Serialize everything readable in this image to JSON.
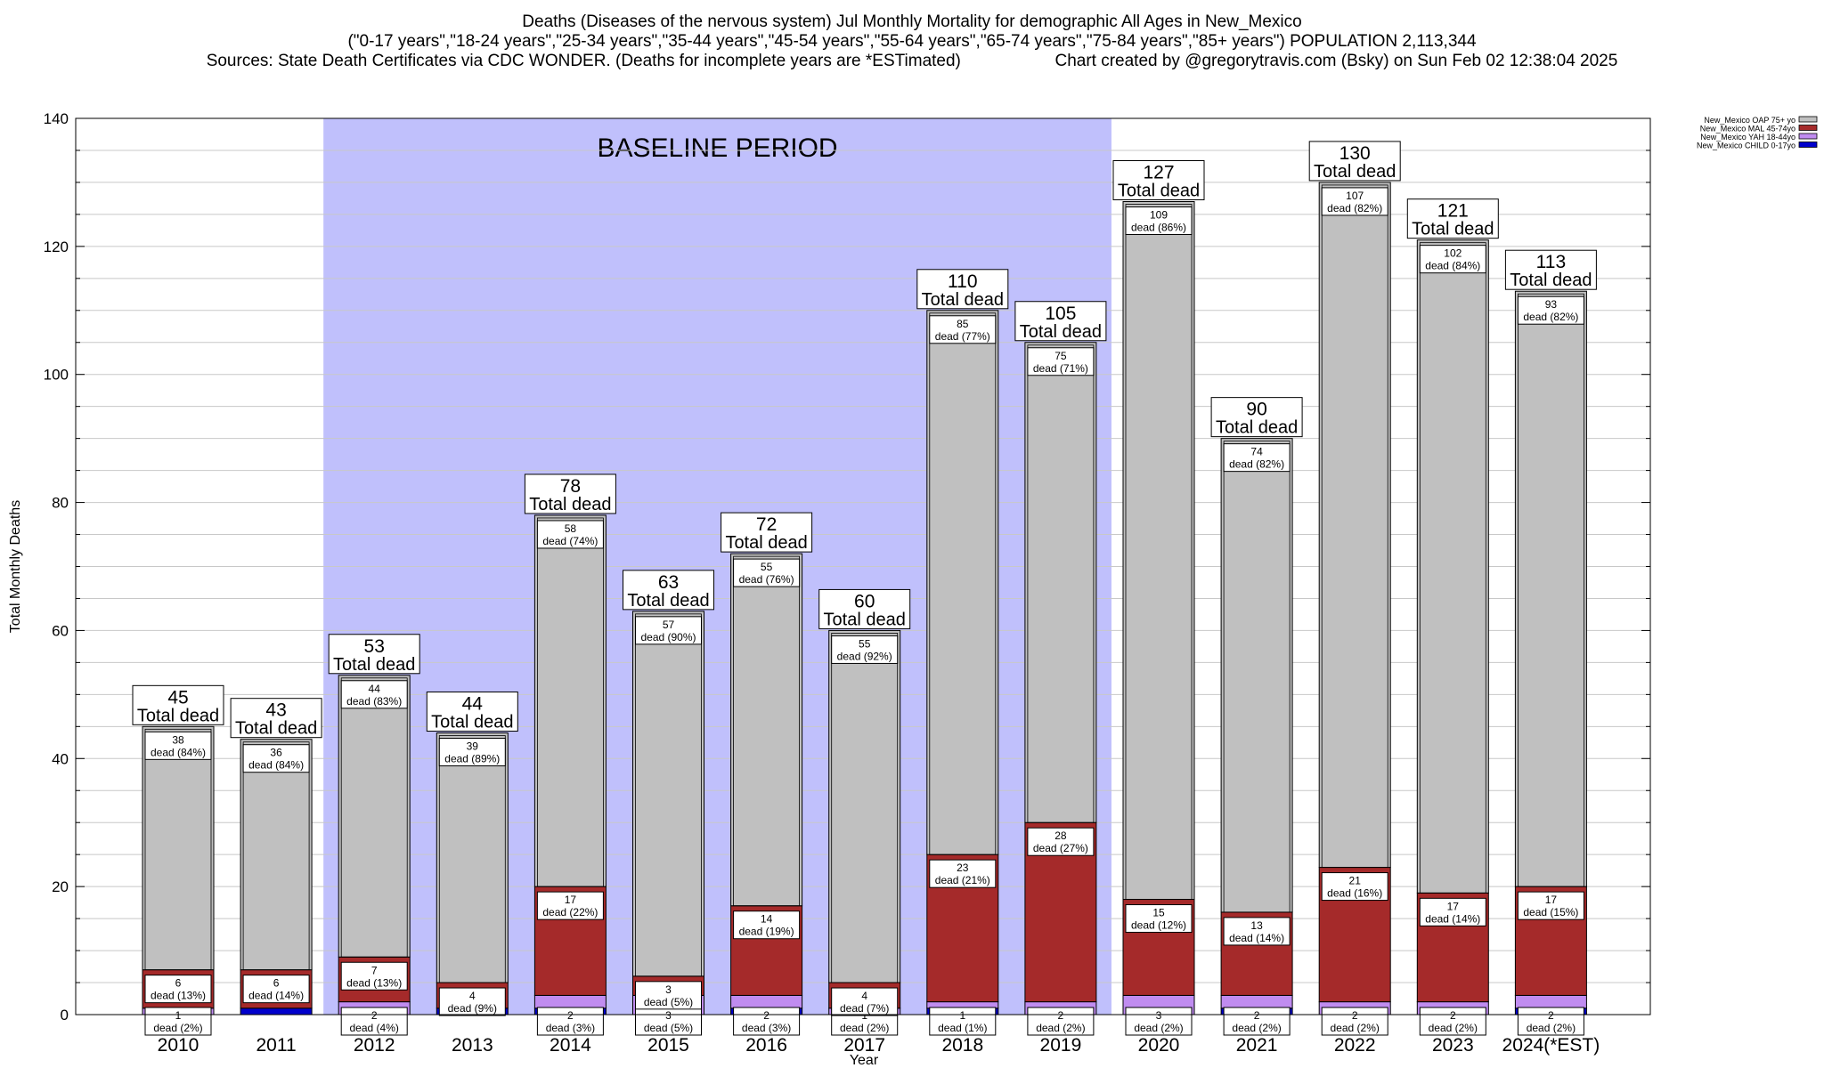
{
  "header": {
    "title": "Deaths (Diseases of the nervous system) Jul Monthly Mortality for demographic All Ages in New_Mexico",
    "subtitle": "(\"0-17 years\",\"18-24 years\",\"25-34 years\",\"35-44 years\",\"45-54 years\",\"55-64 years\",\"65-74 years\",\"75-84 years\",\"85+ years\") POPULATION 2,113,344",
    "sources": "Sources: State Death Certificates via CDC WONDER. (Deaths for incomplete years are *ESTimated)",
    "credit": "Chart created by @gregorytravis.com (Bsky) on Sun Feb 02 12:38:04 2025"
  },
  "chart_data": {
    "type": "bar",
    "stacked": true,
    "xlabel": "Year",
    "ylabel": "Total Monthly Deaths",
    "ylim": [
      0,
      140
    ],
    "yticks": [
      0,
      20,
      40,
      60,
      80,
      100,
      120,
      140
    ],
    "grid": true,
    "legend_position": "top-right",
    "baseline_label": "BASELINE PERIOD",
    "baseline_categories": [
      "2012",
      "2019"
    ],
    "categories": [
      "2010",
      "2011",
      "2012",
      "2013",
      "2014",
      "2015",
      "2016",
      "2017",
      "2018",
      "2019",
      "2020",
      "2021",
      "2022",
      "2023",
      "2024(*EST)"
    ],
    "totals": [
      45,
      43,
      53,
      44,
      78,
      63,
      72,
      60,
      110,
      105,
      127,
      90,
      130,
      121,
      113
    ],
    "total_label": "Total dead",
    "dead_word": "dead",
    "series": [
      {
        "name": "New_Mexico CHILD 0-17yo",
        "color": "#0000cc",
        "values": [
          0,
          1,
          0,
          1,
          1,
          0,
          1,
          0,
          1,
          0,
          0,
          1,
          0,
          0,
          1
        ],
        "labels": [
          null,
          null,
          null,
          null,
          null,
          null,
          null,
          null,
          null,
          null,
          null,
          null,
          null,
          null,
          null
        ]
      },
      {
        "name": "New_Mexico YAH 18-44yo",
        "color": "#c08cf0",
        "values": [
          1,
          0,
          2,
          0,
          2,
          3,
          2,
          1,
          1,
          2,
          3,
          2,
          2,
          2,
          2
        ],
        "labels": [
          [
            "1",
            "(2%)"
          ],
          null,
          [
            "2",
            "(4%)"
          ],
          null,
          [
            "2",
            "(3%)"
          ],
          [
            "3",
            "(5%)"
          ],
          [
            "2",
            "(3%)"
          ],
          [
            "1",
            "(2%)"
          ],
          [
            "1",
            "(1%)"
          ],
          [
            "2",
            "(2%)"
          ],
          [
            "3",
            "(2%)"
          ],
          [
            "2",
            "(2%)"
          ],
          [
            "2",
            "(2%)"
          ],
          [
            "2",
            "(2%)"
          ],
          [
            "2",
            "(2%)"
          ]
        ]
      },
      {
        "name": "New_Mexico MAL 45-74yo",
        "color": "#a52a2a",
        "values": [
          6,
          6,
          7,
          4,
          17,
          3,
          14,
          4,
          23,
          28,
          15,
          13,
          21,
          17,
          17
        ],
        "labels": [
          [
            "6",
            "(13%)"
          ],
          [
            "6",
            "(14%)"
          ],
          [
            "7",
            "(13%)"
          ],
          [
            "4",
            "(9%)"
          ],
          [
            "17",
            "(22%)"
          ],
          [
            "3",
            "(5%)"
          ],
          [
            "14",
            "(19%)"
          ],
          [
            "4",
            "(7%)"
          ],
          [
            "23",
            "(21%)"
          ],
          [
            "28",
            "(27%)"
          ],
          [
            "15",
            "(12%)"
          ],
          [
            "13",
            "(14%)"
          ],
          [
            "21",
            "(16%)"
          ],
          [
            "17",
            "(14%)"
          ],
          [
            "17",
            "(15%)"
          ]
        ]
      },
      {
        "name": "New_Mexico OAP 75+ yo",
        "color": "#c0c0c0",
        "values": [
          38,
          36,
          44,
          39,
          58,
          57,
          55,
          55,
          85,
          75,
          109,
          74,
          107,
          102,
          93
        ],
        "labels": [
          [
            "38",
            "(84%)"
          ],
          [
            "36",
            "(84%)"
          ],
          [
            "44",
            "(83%)"
          ],
          [
            "39",
            "(89%)"
          ],
          [
            "58",
            "(74%)"
          ],
          [
            "57",
            "(90%)"
          ],
          [
            "55",
            "(76%)"
          ],
          [
            "55",
            "(92%)"
          ],
          [
            "85",
            "(77%)"
          ],
          [
            "75",
            "(71%)"
          ],
          [
            "109",
            "(86%)"
          ],
          [
            "74",
            "(82%)"
          ],
          [
            "107",
            "(82%)"
          ],
          [
            "102",
            "(84%)"
          ],
          [
            "93",
            "(82%)"
          ]
        ]
      }
    ]
  }
}
